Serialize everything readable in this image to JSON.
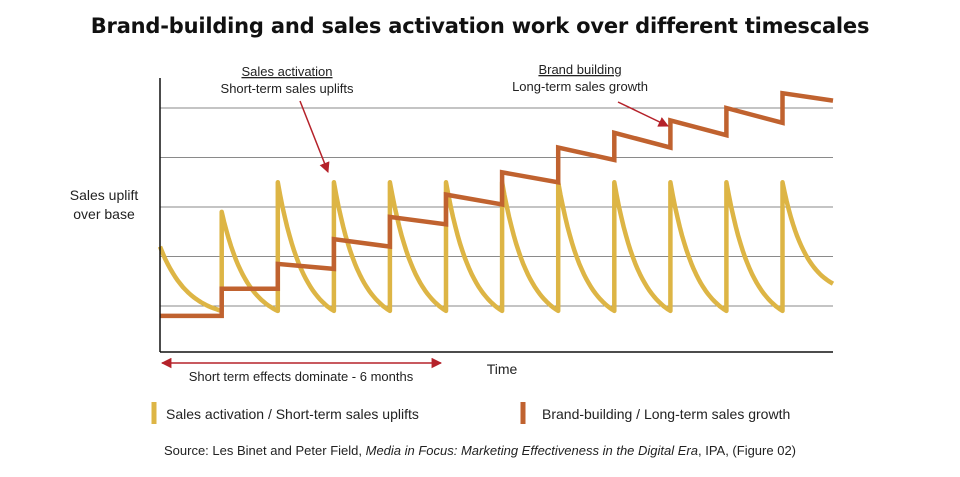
{
  "title": "Brand-building and sales activation work over different timescales",
  "source": {
    "prefix": "Source: Les Binet and Peter Field, ",
    "italic": "Media in Focus: Marketing Effectiveness in the Digital Era",
    "suffix": ", IPA, (Figure 02)"
  },
  "colors": {
    "activation": "#DDB545",
    "brand": "#C0622F",
    "arrow": "#B5222A",
    "grid": "#8a8a8a",
    "axis": "#111111"
  },
  "chart_data": {
    "type": "line",
    "title": "Brand-building and sales activation work over different timescales",
    "ylabel_lines": [
      "Sales uplift",
      "over base"
    ],
    "xlabel": "Time",
    "grid": true,
    "ylim": [
      0,
      5
    ],
    "xlim": [
      0,
      12
    ],
    "y_gridlines": [
      1,
      2,
      3,
      4,
      5
    ],
    "series": [
      {
        "name": "Sales activation / Short-term sales uplifts",
        "color": "#DDB545",
        "decay_from": 2.8,
        "decay_to": 0.9,
        "initial_value": 2.2,
        "start_x": 0,
        "end_x": 12,
        "spikes": [
          {
            "x": 1.1,
            "peak": 2.9
          },
          {
            "x": 2.1,
            "peak": 3.5
          },
          {
            "x": 3.1,
            "peak": 3.5
          },
          {
            "x": 4.1,
            "peak": 3.5
          },
          {
            "x": 5.1,
            "peak": 3.5
          },
          {
            "x": 6.1,
            "peak": 3.5
          },
          {
            "x": 7.1,
            "peak": 3.5
          },
          {
            "x": 8.1,
            "peak": 3.5
          },
          {
            "x": 9.1,
            "peak": 3.5
          },
          {
            "x": 10.1,
            "peak": 3.5
          },
          {
            "x": 11.1,
            "peak": 3.5
          }
        ]
      },
      {
        "name": "Brand-building / Long-term sales growth",
        "color": "#C0622F",
        "steps": [
          {
            "x0": 0,
            "x1": 1.1,
            "y0": 0.8,
            "y1": 0.8
          },
          {
            "x0": 1.1,
            "x1": 2.1,
            "y0": 1.35,
            "y1": 1.35
          },
          {
            "x0": 2.1,
            "x1": 3.1,
            "y0": 1.85,
            "y1": 1.75
          },
          {
            "x0": 3.1,
            "x1": 4.1,
            "y0": 2.35,
            "y1": 2.2
          },
          {
            "x0": 4.1,
            "x1": 5.1,
            "y0": 2.8,
            "y1": 2.65
          },
          {
            "x0": 5.1,
            "x1": 6.1,
            "y0": 3.25,
            "y1": 3.05
          },
          {
            "x0": 6.1,
            "x1": 7.1,
            "y0": 3.7,
            "y1": 3.5
          },
          {
            "x0": 7.1,
            "x1": 8.1,
            "y0": 4.2,
            "y1": 3.95
          },
          {
            "x0": 8.1,
            "x1": 9.1,
            "y0": 4.5,
            "y1": 4.2
          },
          {
            "x0": 9.1,
            "x1": 10.1,
            "y0": 4.75,
            "y1": 4.45
          },
          {
            "x0": 10.1,
            "x1": 11.1,
            "y0": 5.0,
            "y1": 4.7
          },
          {
            "x0": 11.1,
            "x1": 12.0,
            "y0": 5.3,
            "y1": 5.15
          }
        ]
      }
    ],
    "annotations": {
      "activation": {
        "underlined": "Sales activation",
        "text": "Short-term sales uplifts",
        "target": {
          "x": 3.05,
          "y": 2.55
        }
      },
      "brand": {
        "underlined": "Brand building",
        "text": "Long-term sales growth",
        "target": {
          "x": 9.4,
          "y": 4.35
        }
      },
      "range": {
        "text": "Short term effects dominate - 6 months",
        "x_start": 0,
        "x_end": 5.0
      }
    },
    "legend": [
      {
        "label": "Sales activation / Short-term sales uplifts",
        "color": "#DDB545"
      },
      {
        "label": "Brand-building / Long-term sales growth",
        "color": "#C0622F"
      }
    ]
  }
}
